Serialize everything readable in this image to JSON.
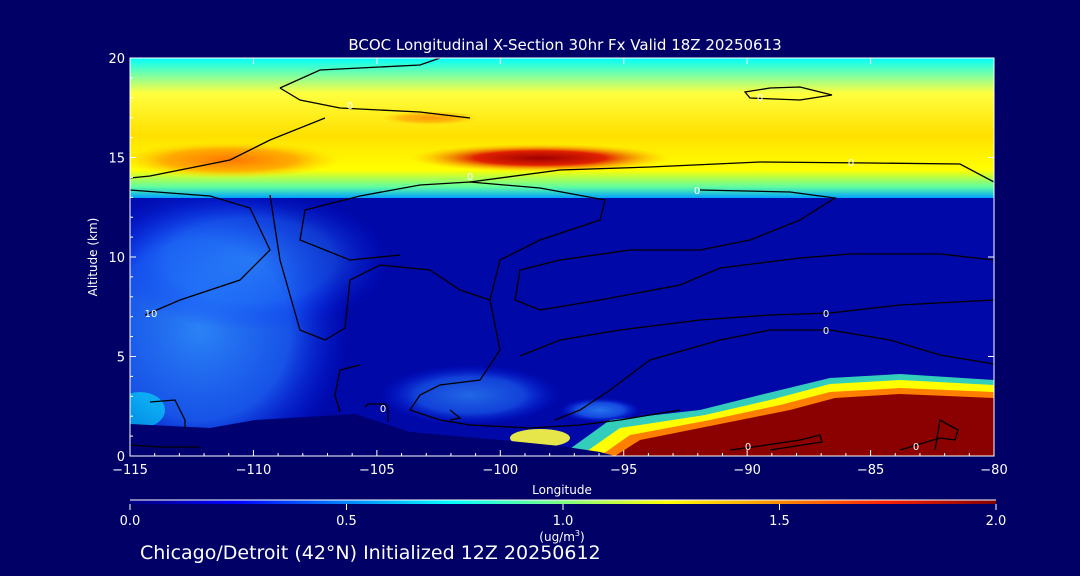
{
  "chart_data": {
    "type": "heatmap",
    "title": "BCOC Longitudinal X-Section 30hr  Fx Valid 18Z 20250613",
    "xlabel": "Longitude",
    "ylabel": "Altitude (km)",
    "xlim": [
      -115,
      -80
    ],
    "ylim": [
      0,
      20
    ],
    "x_ticks": [
      -115,
      -110,
      -105,
      -100,
      -95,
      -90,
      -85,
      -80
    ],
    "x_tick_labels": [
      "−115",
      "−110",
      "−105",
      "−100",
      "−95",
      "−90",
      "−85",
      "−80"
    ],
    "y_ticks": [
      0,
      5,
      10,
      15,
      20
    ],
    "y_tick_labels": [
      "0",
      "5",
      "10",
      "15",
      "20"
    ],
    "colorbar": {
      "min": 0.0,
      "max": 2.0,
      "ticks": [
        0.0,
        0.5,
        1.0,
        1.5,
        2.0
      ],
      "tick_labels": [
        "0.0",
        "0.5",
        "1.0",
        "1.5",
        "2.0"
      ],
      "units": "(ug/m",
      "units_superscript": "3",
      "units_close": ")"
    },
    "layers": [
      {
        "alt_range": [
          0,
          1.7
        ],
        "lon_range": [
          -97,
          -80
        ],
        "value": 2.0
      },
      {
        "alt_range": [
          1.5,
          4.0
        ],
        "lon_range": [
          -88,
          -80
        ],
        "value": 2.0
      },
      {
        "alt_range": [
          13.8,
          17.5
        ],
        "lon_range": [
          -115,
          -80
        ],
        "value": 1.1
      },
      {
        "alt_range": [
          14.5,
          15.5
        ],
        "lon_range": [
          -102,
          -94
        ],
        "value": 1.9
      },
      {
        "alt_range": [
          14.3,
          15.3
        ],
        "lon_range": [
          -114,
          -107
        ],
        "value": 1.4
      },
      {
        "alt_range": [
          3,
          10
        ],
        "lon_range": [
          -115,
          -104
        ],
        "value": 0.45
      }
    ],
    "contour_labels": [
      "0",
      "0",
      "0",
      "0",
      "0",
      "0",
      "0",
      "0",
      "10",
      "0",
      "0"
    ]
  },
  "colors": {
    "background": "#000066",
    "text": "#ffffff",
    "contour": "#000000"
  },
  "footer": "Chicago/Detroit (42°N) Initialized 12Z 20250612"
}
